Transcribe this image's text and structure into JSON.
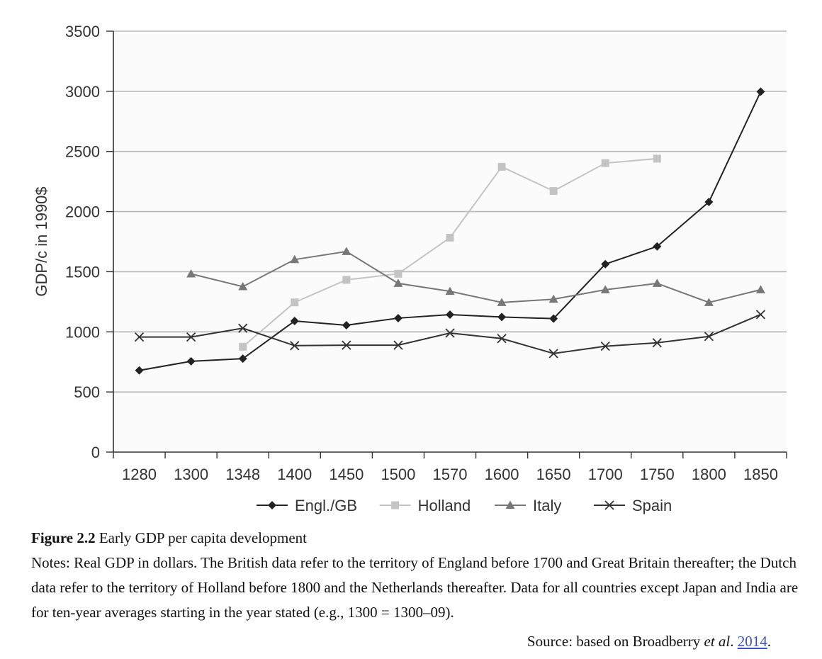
{
  "chart_data": {
    "type": "line",
    "categories": [
      "1280",
      "1300",
      "1348",
      "1400",
      "1450",
      "1500",
      "1570",
      "1600",
      "1650",
      "1700",
      "1750",
      "1800",
      "1850"
    ],
    "ylabel": "GDP/c in 1990$",
    "xlabel": "",
    "ylim": [
      0,
      3500
    ],
    "yticks": [
      "0",
      "500",
      "1000",
      "1500",
      "2000",
      "2500",
      "3000",
      "3500"
    ],
    "grid": "horizontal",
    "legend_position": "bottom",
    "series": [
      {
        "name": "Engl./GB",
        "marker": "diamond",
        "color": "#222222",
        "values": [
          679,
          755,
          777,
          1090,
          1055,
          1114,
          1143,
          1123,
          1110,
          1563,
          1710,
          2080,
          2997
        ]
      },
      {
        "name": "Holland",
        "marker": "square",
        "color": "#c4c4c4",
        "values": [
          null,
          null,
          876,
          1245,
          1432,
          1483,
          1783,
          2372,
          2171,
          2403,
          2440,
          null,
          null
        ]
      },
      {
        "name": "Italy",
        "marker": "triangle",
        "color": "#777777",
        "values": [
          null,
          1482,
          1376,
          1601,
          1668,
          1403,
          1337,
          1244,
          1271,
          1350,
          1403,
          1244,
          1350
        ]
      },
      {
        "name": "Spain",
        "marker": "x",
        "color": "#333333",
        "values": [
          957,
          957,
          1030,
          885,
          889,
          889,
          990,
          944,
          820,
          880,
          909,
          962,
          1144
        ]
      }
    ]
  },
  "caption": {
    "figure_label": "Figure 2.2",
    "figure_title": " Early GDP per capita development",
    "notes": "Notes: Real GDP in dollars. The British data refer to the territory of England before 1700 and Great Britain thereafter; the Dutch data refer to the territory of Holland before 1800 and the Netherlands thereafter. Data for all countries except Japan and India are for ten-year averages starting in the year stated (e.g., 1300 = 1300–09)."
  },
  "source": {
    "prefix": "Source: based on Broadberry ",
    "etal": "et al",
    "dot": ". ",
    "link_text": "2014",
    "suffix": "."
  }
}
